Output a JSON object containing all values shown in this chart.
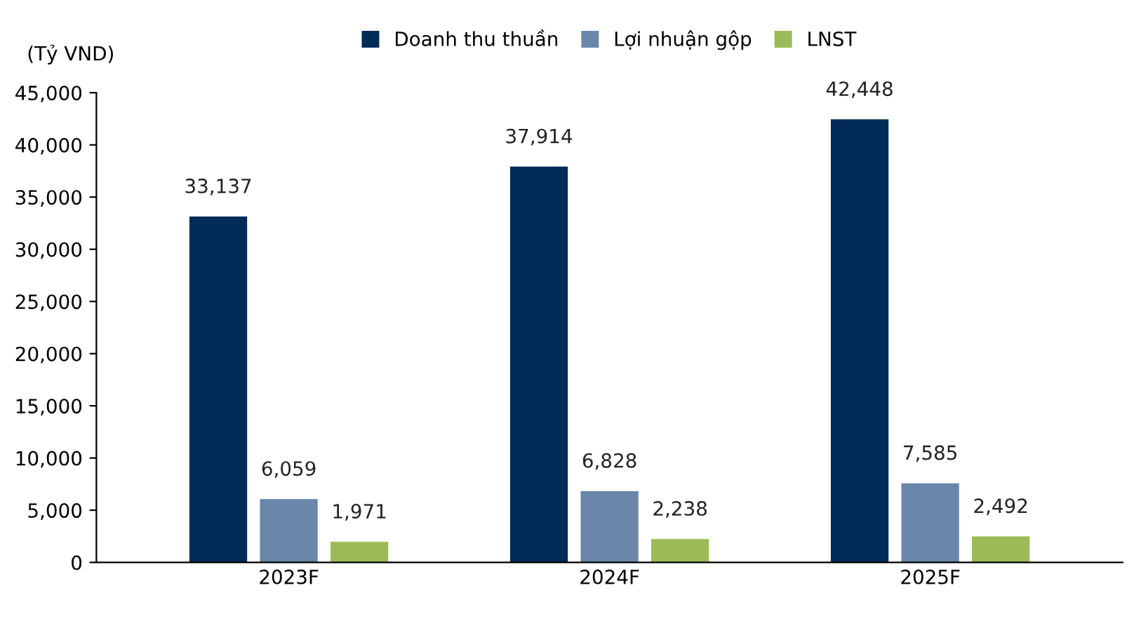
{
  "chart_data": {
    "type": "bar",
    "ylabel": "(Tỷ VND)",
    "categories": [
      "2023F",
      "2024F",
      "2025F"
    ],
    "series": [
      {
        "name": "Doanh thu thuần",
        "color": "#002c57",
        "values": [
          33137,
          37914,
          42448
        ],
        "value_labels": [
          "33,137",
          "37,914",
          "42,448"
        ]
      },
      {
        "name": "Lợi nhuận gộp",
        "color": "#6a87ab",
        "values": [
          6059,
          6828,
          7585
        ],
        "value_labels": [
          "6,059",
          "6,828",
          "7,585"
        ]
      },
      {
        "name": "LNST",
        "color": "#9bbb59",
        "values": [
          1971,
          2238,
          2492
        ],
        "value_labels": [
          "1,971",
          "2,238",
          "2,492"
        ]
      }
    ],
    "ylim": [
      0,
      45000
    ],
    "yticks": [
      0,
      {
        "value": 5000,
        "label": "5,000"
      },
      {
        "value": 10000,
        "label": "10,000"
      },
      {
        "value": 15000,
        "label": "15,000"
      },
      {
        "value": 20000,
        "label": "20,000"
      },
      {
        "value": 25000,
        "label": "25,000"
      },
      {
        "value": 30000,
        "label": "30,000"
      },
      {
        "value": 35000,
        "label": "35,000"
      },
      {
        "value": 40000,
        "label": "40,000"
      },
      {
        "value": 45000,
        "label": "45,000"
      }
    ],
    "grid": false,
    "legend": "top"
  }
}
